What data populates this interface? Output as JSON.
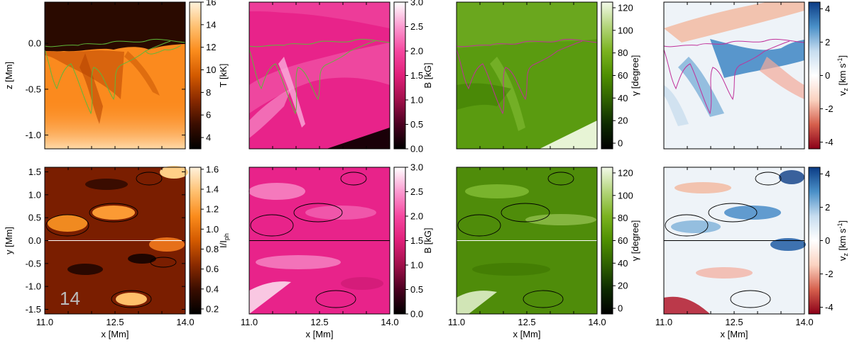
{
  "chart_data": [
    {
      "type": "heatmap",
      "panel": "top-1",
      "quantity": "temperature",
      "xlim": [
        11.0,
        14.0
      ],
      "ylim": [
        -1.15,
        0.45
      ],
      "xlabel": "",
      "ylabel": "z [Mm]",
      "y_ticks": [
        "0.0",
        "-0.5",
        "-1.0"
      ],
      "y_tick_values": [
        0.0,
        -0.5,
        -1.0
      ],
      "colorbar": {
        "label": "T [kK]",
        "min": 3,
        "max": 16,
        "ticks": [
          "4",
          "6",
          "8",
          "10",
          "12",
          "14",
          "16"
        ],
        "tick_values": [
          4,
          6,
          8,
          10,
          12,
          14,
          16
        ],
        "colors": [
          "#000000",
          "#3a0d00",
          "#8a2a00",
          "#d35a00",
          "#fb8c1c",
          "#ffc070",
          "#fff2dc"
        ]
      },
      "contour_color": "#5fb83a"
    },
    {
      "type": "heatmap",
      "panel": "top-2",
      "quantity": "magnetic field strength",
      "xlim": [
        11.0,
        14.0
      ],
      "ylim": [
        -1.15,
        0.45
      ],
      "colorbar": {
        "label": "B [kG]",
        "min": 0,
        "max": 3,
        "ticks": [
          "0.0",
          "0.5",
          "1.0",
          "1.5",
          "2.0",
          "2.5",
          "3.0"
        ],
        "tick_values": [
          0,
          0.5,
          1,
          1.5,
          2,
          2.5,
          3
        ],
        "colors": [
          "#000000",
          "#4a0020",
          "#a0104a",
          "#e01f7a",
          "#f548a0",
          "#fb9ad0",
          "#ffffff"
        ]
      },
      "contour_color": "#5fb83a"
    },
    {
      "type": "heatmap",
      "panel": "top-3",
      "quantity": "inclination",
      "xlim": [
        11.0,
        14.0
      ],
      "ylim": [
        -1.15,
        0.45
      ],
      "colorbar": {
        "label": "γ [degree]",
        "min": -5,
        "max": 125,
        "ticks": [
          "0",
          "20",
          "40",
          "60",
          "80",
          "100",
          "120"
        ],
        "tick_values": [
          0,
          20,
          40,
          60,
          80,
          100,
          120
        ],
        "colors": [
          "#000000",
          "#0d2a00",
          "#2e6000",
          "#4e8f00",
          "#7bb320",
          "#b3d57a",
          "#f2f9e8"
        ]
      },
      "contour_color": "#c0309a"
    },
    {
      "type": "heatmap",
      "panel": "top-4",
      "quantity": "vertical velocity",
      "xlim": [
        11.0,
        14.0
      ],
      "ylim": [
        -1.15,
        0.45
      ],
      "colorbar": {
        "label": "v_z [km s^-1]",
        "label_main": "v",
        "label_sub": "z",
        "label_unit": " [km s",
        "label_sup": "-1",
        "label_end": "]",
        "min": -4.4,
        "max": 4.4,
        "ticks": [
          "-4",
          "-2",
          "0",
          "2",
          "4"
        ],
        "tick_values": [
          -4,
          -2,
          0,
          2,
          4
        ],
        "colors": [
          "#8b0018",
          "#d6604d",
          "#fbd2c0",
          "#ffffff",
          "#c6dcef",
          "#4a90c8",
          "#0b3c85"
        ]
      },
      "contour_color": "#c0309a"
    },
    {
      "type": "heatmap",
      "panel": "bottom-1",
      "quantity": "continuum intensity",
      "xlim": [
        11.0,
        14.0
      ],
      "ylim": [
        -1.6,
        1.6
      ],
      "xlabel": "x [Mm]",
      "ylabel": "y [Mm]",
      "x_ticks": [
        "11.0",
        "12.5",
        "14.0"
      ],
      "x_tick_values": [
        11.0,
        12.5,
        14.0
      ],
      "y_ticks": [
        "1.5",
        "1.0",
        "0.5",
        "0.0",
        "-0.5",
        "-1.0",
        "-1.5"
      ],
      "y_tick_values": [
        1.5,
        1.0,
        0.5,
        0.0,
        -0.5,
        -1.0,
        -1.5
      ],
      "annotation": "14",
      "colorbar": {
        "label": "I/I_ph",
        "label_main": "I/I",
        "label_sub": "ph",
        "min": 0.15,
        "max": 1.62,
        "ticks": [
          "0.2",
          "0.4",
          "0.6",
          "0.8",
          "1.0",
          "1.2",
          "1.4",
          "1.6"
        ],
        "tick_values": [
          0.2,
          0.4,
          0.6,
          0.8,
          1.0,
          1.2,
          1.4,
          1.6
        ],
        "colors": [
          "#000000",
          "#3a0d00",
          "#8a2a00",
          "#d35a00",
          "#fb8c1c",
          "#ffc070",
          "#fff2dc"
        ]
      },
      "contour_color": "#000000"
    },
    {
      "type": "heatmap",
      "panel": "bottom-2",
      "quantity": "magnetic field strength",
      "xlim": [
        11.0,
        14.0
      ],
      "ylim": [
        -1.6,
        1.6
      ],
      "xlabel": "x [Mm]",
      "x_ticks": [
        "11.0",
        "12.5",
        "14.0"
      ],
      "x_tick_values": [
        11.0,
        12.5,
        14.0
      ],
      "colorbar": {
        "label": "B [kG]",
        "min": 0,
        "max": 3,
        "ticks": [
          "0.0",
          "0.5",
          "1.0",
          "1.5",
          "2.0",
          "2.5",
          "3.0"
        ],
        "tick_values": [
          0,
          0.5,
          1,
          1.5,
          2,
          2.5,
          3
        ],
        "colors": [
          "#000000",
          "#4a0020",
          "#a0104a",
          "#e01f7a",
          "#f548a0",
          "#fb9ad0",
          "#ffffff"
        ]
      },
      "contour_color": "#000000"
    },
    {
      "type": "heatmap",
      "panel": "bottom-3",
      "quantity": "inclination",
      "xlim": [
        11.0,
        14.0
      ],
      "ylim": [
        -1.6,
        1.6
      ],
      "xlabel": "x [Mm]",
      "x_ticks": [
        "11.0",
        "12.5",
        "14.0"
      ],
      "x_tick_values": [
        11.0,
        12.5,
        14.0
      ],
      "colorbar": {
        "label": "γ [degree]",
        "min": -5,
        "max": 125,
        "ticks": [
          "0",
          "20",
          "40",
          "60",
          "80",
          "100",
          "120"
        ],
        "tick_values": [
          0,
          20,
          40,
          60,
          80,
          100,
          120
        ],
        "colors": [
          "#000000",
          "#0d2a00",
          "#2e6000",
          "#4e8f00",
          "#7bb320",
          "#b3d57a",
          "#f2f9e8"
        ]
      },
      "contour_color": "#000000"
    },
    {
      "type": "heatmap",
      "panel": "bottom-4",
      "quantity": "vertical velocity",
      "xlim": [
        11.0,
        14.0
      ],
      "ylim": [
        -1.6,
        1.6
      ],
      "xlabel": "x [Mm]",
      "x_ticks": [
        "11.0",
        "12.5",
        "14.0"
      ],
      "x_tick_values": [
        11.0,
        12.5,
        14.0
      ],
      "colorbar": {
        "label": "v_z [km s^-1]",
        "label_main": "v",
        "label_sub": "z",
        "label_unit": " [km s",
        "label_sup": "-1",
        "label_end": "]",
        "min": -4.4,
        "max": 4.4,
        "ticks": [
          "-4",
          "-2",
          "0",
          "2",
          "4"
        ],
        "tick_values": [
          -4,
          -2,
          0,
          2,
          4
        ],
        "colors": [
          "#8b0018",
          "#d6604d",
          "#fbd2c0",
          "#ffffff",
          "#c6dcef",
          "#4a90c8",
          "#0b3c85"
        ]
      },
      "contour_color": "#000000"
    }
  ]
}
